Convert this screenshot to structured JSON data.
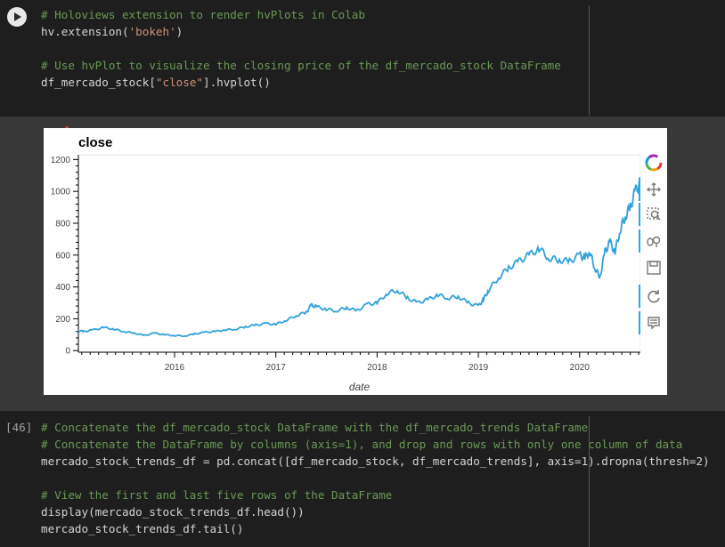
{
  "cell1": {
    "lines": [
      {
        "type": "comment",
        "text": "# Holoviews extension to render hvPlots in Colab"
      },
      {
        "type": "code",
        "pre": "hv.extension(",
        "str": "'bokeh'",
        "post": ")"
      },
      {
        "type": "blank",
        "text": ""
      },
      {
        "type": "comment",
        "text": "# Use hvPlot to visualize the closing price of the df_mercado_stock DataFrame"
      },
      {
        "type": "code",
        "pre": "df_mercado_stock[",
        "str": "\"close\"",
        "post": "].hvplot()"
      }
    ]
  },
  "cell2": {
    "prompt": "[46]",
    "lines": [
      {
        "type": "comment",
        "text": "# Concatenate the df_mercado_stock DataFrame with the df_mercado_trends DataFrame"
      },
      {
        "type": "comment",
        "text": "# Concatenate the DataFrame by columns (axis=1), and drop and rows with only one column of data"
      },
      {
        "type": "code",
        "pre": "mercado_stock_trends_df = pd.concat([df_mercado_stock, df_mercado_trends], axis=1).dropna(thresh=2)",
        "str": "",
        "post": ""
      },
      {
        "type": "blank",
        "text": ""
      },
      {
        "type": "comment",
        "text": "# View the first and last five rows of the DataFrame"
      },
      {
        "type": "code",
        "pre": "display(mercado_stock_trends_df.head())",
        "str": "",
        "post": ""
      },
      {
        "type": "code",
        "pre": "mercado_stock_trends_df.tail()",
        "str": "",
        "post": ""
      }
    ]
  },
  "toolbar": {
    "tools": [
      {
        "name": "bokeh-logo-icon"
      },
      {
        "name": "pan-icon"
      },
      {
        "name": "box-zoom-icon"
      },
      {
        "name": "wheel-zoom-icon"
      },
      {
        "name": "save-icon"
      },
      {
        "name": "reset-icon"
      },
      {
        "name": "hover-icon"
      }
    ]
  },
  "chart_data": {
    "type": "line",
    "title": "close",
    "xlabel": "date",
    "ylabel": "",
    "xlim": [
      2015.05,
      2020.6
    ],
    "ylim": [
      -10,
      1230
    ],
    "xticks": [
      "2016",
      "2017",
      "2018",
      "2019",
      "2020"
    ],
    "yticks": [
      0,
      200,
      400,
      600,
      800,
      1000,
      1200
    ],
    "line_color": "#30a2da",
    "series": [
      {
        "x": [
          2015.05,
          2015.1,
          2015.2,
          2015.3,
          2015.4,
          2015.5,
          2015.6,
          2015.7,
          2015.8,
          2015.9,
          2016.0,
          2016.1,
          2016.2,
          2016.3,
          2016.4,
          2016.5,
          2016.6,
          2016.7,
          2016.8,
          2016.9,
          2017.0,
          2017.1,
          2017.2,
          2017.3,
          2017.35,
          2017.4,
          2017.5,
          2017.6,
          2017.7,
          2017.8,
          2017.9,
          2018.0,
          2018.1,
          2018.2,
          2018.3,
          2018.4,
          2018.5,
          2018.6,
          2018.7,
          2018.8,
          2018.9,
          2019.0,
          2019.05,
          2019.1,
          2019.2,
          2019.3,
          2019.4,
          2019.5,
          2019.6,
          2019.7,
          2019.8,
          2019.9,
          2020.0,
          2020.05,
          2020.1,
          2020.15,
          2020.2,
          2020.25,
          2020.3,
          2020.35,
          2020.4,
          2020.45,
          2020.5,
          2020.55,
          2020.6
        ],
        "values": [
          125,
          120,
          130,
          145,
          135,
          120,
          110,
          95,
          110,
          100,
          95,
          92,
          105,
          115,
          120,
          130,
          135,
          150,
          160,
          170,
          165,
          190,
          220,
          240,
          285,
          275,
          260,
          250,
          270,
          250,
          290,
          300,
          360,
          380,
          330,
          300,
          320,
          350,
          330,
          340,
          300,
          280,
          320,
          380,
          460,
          520,
          560,
          600,
          640,
          580,
          570,
          560,
          600,
          580,
          620,
          520,
          460,
          620,
          680,
          620,
          760,
          840,
          900,
          1000,
          1060
        ]
      }
    ]
  }
}
